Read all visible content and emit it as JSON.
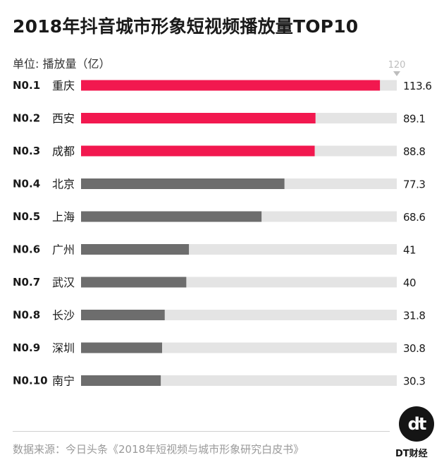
{
  "page": {
    "title": "2018年抖音城市形象短视频播放量TOP10",
    "unit": "单位: 播放量（亿）",
    "source": "数据来源：今日头条《2018年短视频与城市形象研究白皮书》",
    "logo_mark": "dt",
    "logo_text": "DT财经"
  },
  "colors": {
    "highlight": "#f2184f",
    "normal": "#6d6d6d",
    "track": "#e4e4e4",
    "max_marker": "#bdbdbd"
  },
  "chart_data": {
    "type": "bar",
    "orientation": "horizontal",
    "title": "2018年抖音城市形象短视频播放量TOP10",
    "unit_label": "单位: 播放量（亿）",
    "xlim": [
      0,
      120
    ],
    "max_label": "120",
    "highlight_top": 3,
    "ranks": [
      "N0.1",
      "N0.2",
      "N0.3",
      "N0.4",
      "N0.5",
      "N0.6",
      "N0.7",
      "N0.8",
      "N0.9",
      "N0.10"
    ],
    "categories": [
      "重庆",
      "西安",
      "成都",
      "北京",
      "上海",
      "广州",
      "武汉",
      "长沙",
      "深圳",
      "南宁"
    ],
    "values": [
      113.6,
      89.1,
      88.8,
      77.3,
      68.6,
      41,
      40,
      31.8,
      30.8,
      30.3
    ],
    "value_labels": [
      "113.6",
      "89.1",
      "88.8",
      "77.3",
      "68.6",
      "41",
      "40",
      "31.8",
      "30.8",
      "30.3"
    ]
  }
}
